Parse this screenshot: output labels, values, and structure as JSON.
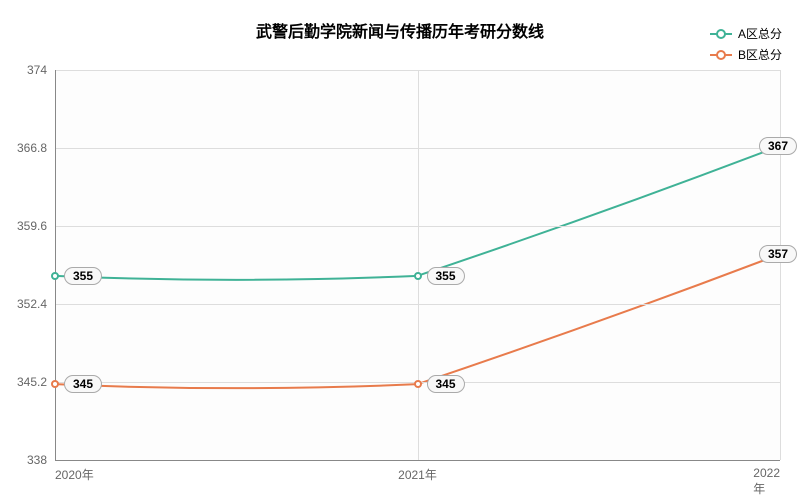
{
  "chart": {
    "type": "line",
    "title": "武警后勤学院新闻与传播历年考研分数线",
    "title_fontsize": 16,
    "title_weight": "bold",
    "background_color": "#ffffff",
    "plot_background_color": "#fdfdfd",
    "grid_color": "#dddddd",
    "axis_color": "#888888",
    "tick_font_color": "#666666",
    "tick_fontsize": 12,
    "x": {
      "categories": [
        "2020年",
        "2021年",
        "2022年"
      ],
      "positions": [
        0,
        0.5,
        1.0
      ]
    },
    "y": {
      "min": 338,
      "max": 374,
      "ticks": [
        338,
        345.2,
        352.4,
        359.6,
        366.8,
        374
      ],
      "tick_labels": [
        "338",
        "345.2",
        "352.4",
        "359.6",
        "366.8",
        "374"
      ]
    },
    "series": [
      {
        "name": "A区总分",
        "color": "#3fb296",
        "line_width": 2,
        "marker": "circle",
        "marker_size": 8,
        "data": [
          355,
          355,
          367
        ],
        "curve": "smooth",
        "label_offset_x": [
          28,
          28,
          -2
        ],
        "label_offset_y": [
          0,
          0,
          0
        ]
      },
      {
        "name": "B区总分",
        "color": "#e87b4c",
        "line_width": 2,
        "marker": "circle",
        "marker_size": 8,
        "data": [
          345,
          345,
          357
        ],
        "curve": "smooth",
        "label_offset_x": [
          28,
          28,
          -2
        ],
        "label_offset_y": [
          0,
          0,
          0
        ]
      }
    ],
    "legend": {
      "position": "top-right",
      "fontsize": 12
    },
    "data_label_style": {
      "background": "#f8f8f8",
      "border_color": "#aaaaaa",
      "border_radius": 10,
      "fontsize": 12,
      "font_weight": "bold"
    }
  }
}
